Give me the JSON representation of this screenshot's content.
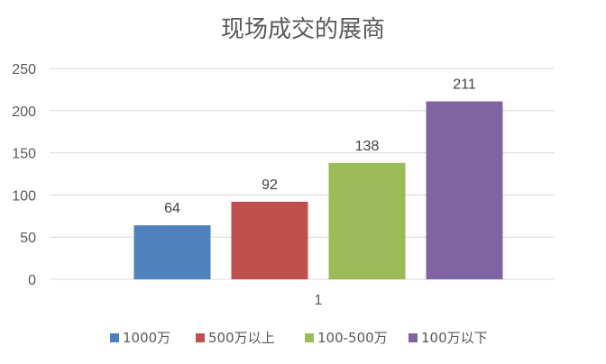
{
  "chart_data": {
    "type": "bar",
    "title": "现场成交的展商",
    "categories": [
      "1"
    ],
    "series": [
      {
        "name": "1000万",
        "values": [
          64
        ],
        "color": "#4F81BD"
      },
      {
        "name": "500万以上",
        "values": [
          92
        ],
        "color": "#C0504D"
      },
      {
        "name": "100-500万",
        "values": [
          138
        ],
        "color": "#9BBB59"
      },
      {
        "name": "100万以下",
        "values": [
          211
        ],
        "color": "#8064A2"
      }
    ],
    "ylim": [
      0,
      250
    ],
    "yticks": [
      "0",
      "50",
      "100",
      "150",
      "200",
      "250"
    ],
    "grid": true,
    "data_labels": true,
    "legend": "bottom"
  }
}
